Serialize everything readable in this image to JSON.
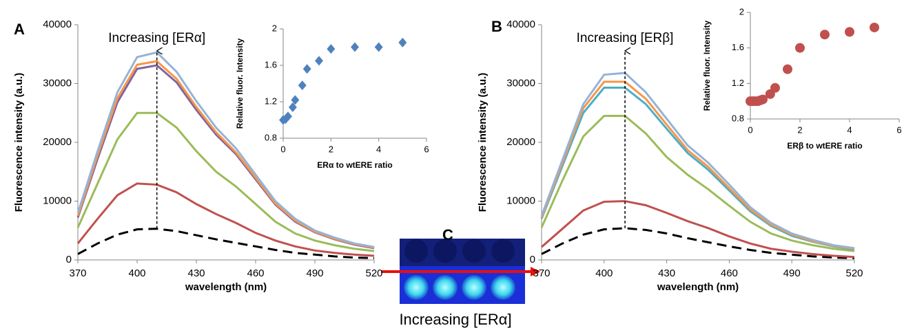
{
  "chart_data": [
    {
      "type": "line",
      "panel_label": "A",
      "annotation": "Increasing [ERα]",
      "x_label": "wavelength (nm)",
      "y_label": "Fluorescence intensity (a.u.)",
      "x": [
        370,
        380,
        390,
        400,
        410,
        420,
        430,
        440,
        450,
        460,
        470,
        480,
        490,
        500,
        510,
        520
      ],
      "xlim": [
        370,
        520
      ],
      "xticks": [
        370,
        400,
        430,
        460,
        490,
        520
      ],
      "ylim": [
        0,
        40000
      ],
      "yticks": [
        0,
        10000,
        20000,
        30000,
        40000
      ],
      "series": [
        {
          "color": "#000000",
          "style": "dashed",
          "values": [
            1000,
            2800,
            4300,
            5200,
            5300,
            4900,
            4200,
            3500,
            2900,
            2300,
            1700,
            1200,
            900,
            600,
            400,
            300
          ]
        },
        {
          "color": "#c0504d",
          "style": "solid",
          "values": [
            2800,
            7000,
            11000,
            13000,
            12800,
            11500,
            9500,
            7800,
            6300,
            4600,
            3300,
            2300,
            1600,
            1200,
            900,
            700
          ]
        },
        {
          "color": "#9bbb59",
          "style": "solid",
          "values": [
            5500,
            13000,
            20500,
            25000,
            25000,
            22500,
            18500,
            15000,
            12500,
            9500,
            6500,
            4500,
            3300,
            2500,
            1900,
            1500
          ]
        },
        {
          "color": "#8064a2",
          "style": "solid",
          "values": [
            7200,
            17200,
            26800,
            32500,
            33100,
            30200,
            25500,
            21300,
            18000,
            13700,
            9400,
            6500,
            4700,
            3500,
            2600,
            2000
          ]
        },
        {
          "color": "#f79646",
          "style": "solid",
          "values": [
            7500,
            17800,
            27500,
            33200,
            33800,
            30800,
            26000,
            21700,
            18300,
            14000,
            9600,
            6700,
            4800,
            3600,
            2700,
            2100
          ]
        },
        {
          "color": "#95b3d7",
          "style": "solid",
          "values": [
            8000,
            18500,
            28500,
            34500,
            35300,
            32000,
            27000,
            22500,
            19000,
            14500,
            10000,
            7000,
            5000,
            3800,
            2800,
            2200
          ]
        }
      ]
    },
    {
      "type": "scatter",
      "marker": "diamond",
      "color": "#4f81bd",
      "x_label": "ERα to wtERE ratio",
      "y_label": "Relative fluor. Intensity",
      "x": [
        0,
        0.1,
        0.2,
        0.4,
        0.5,
        0.8,
        1,
        1.5,
        2,
        3,
        4,
        5
      ],
      "values": [
        1.0,
        1.01,
        1.04,
        1.14,
        1.22,
        1.38,
        1.56,
        1.65,
        1.78,
        1.8,
        1.8,
        1.85
      ],
      "xlim": [
        0,
        6
      ],
      "xticks": [
        0,
        2,
        4,
        6
      ],
      "ylim": [
        0.8,
        2
      ],
      "yticks": [
        0.8,
        1.2,
        1.6,
        2
      ]
    },
    {
      "type": "line",
      "panel_label": "B",
      "annotation": "Increasing [ERβ]",
      "x_label": "wavelength (nm)",
      "y_label": "Fluorescence intensity (a.u.)",
      "x": [
        370,
        380,
        390,
        400,
        410,
        420,
        430,
        440,
        450,
        460,
        470,
        480,
        490,
        500,
        510,
        520
      ],
      "xlim": [
        370,
        520
      ],
      "xticks": [
        370,
        400,
        430,
        460,
        490,
        520
      ],
      "ylim": [
        0,
        40000
      ],
      "yticks": [
        0,
        10000,
        20000,
        30000,
        40000
      ],
      "series": [
        {
          "color": "#000000",
          "style": "dashed",
          "values": [
            1000,
            2800,
            4300,
            5200,
            5400,
            5100,
            4500,
            3700,
            3000,
            2300,
            1700,
            1200,
            900,
            600,
            400,
            300
          ]
        },
        {
          "color": "#c0504d",
          "style": "solid",
          "values": [
            2200,
            5300,
            8400,
            9900,
            10000,
            9300,
            8000,
            6600,
            5400,
            4000,
            2800,
            1900,
            1400,
            1000,
            700,
            500
          ]
        },
        {
          "color": "#9bbb59",
          "style": "solid",
          "values": [
            5500,
            13500,
            21000,
            24500,
            24500,
            21500,
            17500,
            14500,
            12000,
            9200,
            6500,
            4500,
            3300,
            2500,
            1900,
            1500
          ]
        },
        {
          "color": "#4bacc6",
          "style": "solid",
          "values": [
            7000,
            16000,
            25000,
            29300,
            29300,
            26500,
            22300,
            18200,
            15300,
            11800,
            8300,
            5800,
            4100,
            3100,
            2300,
            1800
          ]
        },
        {
          "color": "#f79646",
          "style": "solid",
          "values": [
            7200,
            16500,
            25800,
            30300,
            30300,
            27400,
            23000,
            18700,
            15800,
            12200,
            8600,
            6000,
            4300,
            3200,
            2400,
            1900
          ]
        },
        {
          "color": "#95b3d7",
          "style": "solid",
          "values": [
            7500,
            17000,
            26500,
            31500,
            31800,
            28500,
            24000,
            19500,
            16500,
            12800,
            9000,
            6300,
            4500,
            3400,
            2500,
            2000
          ]
        }
      ]
    },
    {
      "type": "scatter",
      "marker": "circle",
      "color": "#c0504d",
      "x_label": "ERβ to wtERE ratio",
      "y_label": "Relative fluor. Intensity",
      "x": [
        0,
        0.1,
        0.2,
        0.3,
        0.4,
        0.5,
        0.8,
        1,
        1.5,
        2,
        3,
        4,
        5
      ],
      "values": [
        1.0,
        1.0,
        1.0,
        1.0,
        1.01,
        1.02,
        1.08,
        1.15,
        1.36,
        1.6,
        1.75,
        1.78,
        1.83
      ],
      "xlim": [
        0,
        6
      ],
      "xticks": [
        0,
        2,
        4,
        6
      ],
      "ylim": [
        0.8,
        2
      ],
      "yticks": [
        0.8,
        1.2,
        1.6,
        2
      ]
    }
  ],
  "panel_c": {
    "label": "C",
    "caption": "Increasing [ERα]"
  }
}
